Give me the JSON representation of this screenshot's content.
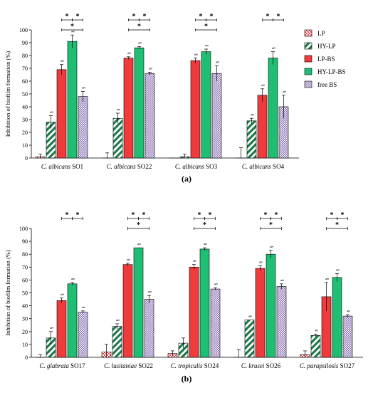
{
  "chart_data": [
    {
      "type": "bar",
      "panel_label": "(a)",
      "ylabel": "Inhibition of biofilm formation (%)",
      "ylim": [
        0,
        100
      ],
      "yticks": [
        "0",
        "10",
        "20",
        "30",
        "40",
        "50",
        "60",
        "70",
        "80",
        "90",
        "100"
      ],
      "categories": [
        {
          "species": "C. albicans",
          "strain": "SO1"
        },
        {
          "species": "C. albicans",
          "strain": "SO22"
        },
        {
          "species": "C. albicans",
          "strain": "SO3"
        },
        {
          "species": "C. albicans",
          "strain": "SO4"
        }
      ],
      "series": [
        {
          "name": "LP",
          "values": [
            1,
            0,
            0,
            0
          ],
          "errors": [
            2,
            4,
            0,
            8
          ],
          "sig": [
            false,
            false,
            false,
            false
          ]
        },
        {
          "name": "HY-LP",
          "values": [
            28,
            31,
            1,
            29
          ],
          "errors": [
            5,
            4,
            2,
            2
          ],
          "sig": [
            true,
            true,
            false,
            true
          ]
        },
        {
          "name": "LP-BS",
          "values": [
            69,
            78,
            76,
            49
          ],
          "errors": [
            4,
            1,
            2,
            5
          ],
          "sig": [
            true,
            true,
            true,
            true
          ]
        },
        {
          "name": "HY-LP-BS",
          "values": [
            91,
            86,
            83,
            78
          ],
          "errors": [
            5,
            1,
            2,
            5
          ],
          "sig": [
            true,
            true,
            true,
            true
          ]
        },
        {
          "name": "free BS",
          "values": [
            48,
            66,
            66,
            40
          ],
          "errors": [
            4,
            1,
            6,
            9
          ],
          "sig": [
            true,
            true,
            true,
            true
          ]
        }
      ],
      "comparisons": [
        {
          "category": 0,
          "pairs": [
            [
              2,
              3
            ],
            [
              3,
              4
            ],
            [
              2,
              4
            ]
          ]
        },
        {
          "category": 1,
          "pairs": [
            [
              2,
              3
            ],
            [
              3,
              4
            ],
            [
              2,
              4
            ]
          ]
        },
        {
          "category": 2,
          "pairs": [
            [
              2,
              3
            ],
            [
              3,
              4
            ],
            [
              2,
              4
            ]
          ]
        },
        {
          "category": 3,
          "pairs": [
            [
              2,
              3
            ],
            [
              3,
              4
            ]
          ]
        }
      ],
      "sig_mark": "§",
      "comparison_mark": "*",
      "legend_position": "right"
    },
    {
      "type": "bar",
      "panel_label": "(b)",
      "ylabel": "Inhibition of biofilm formation (%)",
      "ylim": [
        0,
        100
      ],
      "yticks": [
        "0",
        "10",
        "20",
        "30",
        "40",
        "50",
        "60",
        "70",
        "80",
        "90",
        "100"
      ],
      "categories": [
        {
          "species": "C. glabrata",
          "strain": "SO17"
        },
        {
          "species": "C. lusitaniae",
          "strain": "SO22"
        },
        {
          "species": "C. tropicalis",
          "strain": "SO24"
        },
        {
          "species": "C. krusei",
          "strain": "SO26"
        },
        {
          "species": "C. parapsilosis",
          "strain": "SO27"
        }
      ],
      "series": [
        {
          "name": "LP",
          "values": [
            0,
            4,
            3,
            0,
            2
          ],
          "errors": [
            2,
            6,
            2,
            6,
            3
          ],
          "sig": [
            false,
            false,
            false,
            false,
            false
          ]
        },
        {
          "name": "HY-LP",
          "values": [
            15,
            24,
            11,
            29,
            17
          ],
          "errors": [
            5,
            2,
            4,
            0,
            1
          ],
          "sig": [
            true,
            true,
            false,
            true,
            true
          ]
        },
        {
          "name": "LP-BS",
          "values": [
            44,
            72,
            70,
            69,
            47
          ],
          "errors": [
            2,
            1,
            2,
            2,
            11
          ],
          "sig": [
            true,
            true,
            true,
            true,
            true
          ]
        },
        {
          "name": "HY-LP-BS",
          "values": [
            57,
            85,
            84,
            80,
            62
          ],
          "errors": [
            1,
            0,
            1,
            3,
            3
          ],
          "sig": [
            true,
            true,
            true,
            true,
            true
          ]
        },
        {
          "name": "free BS",
          "values": [
            35,
            45,
            53,
            55,
            32
          ],
          "errors": [
            1,
            3,
            1,
            2,
            1
          ],
          "sig": [
            true,
            true,
            true,
            true,
            true
          ]
        }
      ],
      "comparisons": [
        {
          "category": 0,
          "pairs": [
            [
              2,
              3
            ],
            [
              3,
              4
            ]
          ]
        },
        {
          "category": 1,
          "pairs": [
            [
              2,
              3
            ],
            [
              3,
              4
            ],
            [
              2,
              4
            ]
          ]
        },
        {
          "category": 2,
          "pairs": [
            [
              2,
              3
            ],
            [
              3,
              4
            ],
            [
              2,
              4
            ]
          ]
        },
        {
          "category": 3,
          "pairs": [
            [
              2,
              3
            ],
            [
              3,
              4
            ],
            [
              2,
              4
            ]
          ]
        },
        {
          "category": 4,
          "pairs": [
            [
              2,
              3
            ],
            [
              3,
              4
            ],
            [
              2,
              4
            ]
          ]
        }
      ],
      "sig_mark": "§",
      "comparison_mark": "*"
    }
  ],
  "legend": {
    "items": [
      {
        "name": "LP",
        "fill": "lp"
      },
      {
        "name": "HY-LP",
        "fill": "hylp"
      },
      {
        "name": "LP-BS",
        "fill": "lpbs"
      },
      {
        "name": "HY-LP-BS",
        "fill": "hylpbs"
      },
      {
        "name": "free BS",
        "fill": "freebs"
      }
    ]
  },
  "colors": {
    "lp": "#e8424a",
    "hylp": "#1e7a4a",
    "lpbs": "#ef3b3b",
    "hylpbs": "#1fbf73",
    "freebs": "#8a6fb3",
    "axis": "#000000"
  }
}
